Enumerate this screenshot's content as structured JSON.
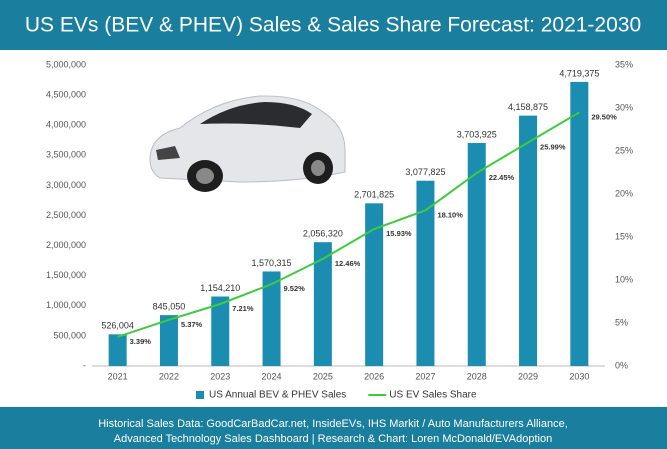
{
  "chart_data": {
    "type": "bar-line",
    "title": "US EVs (BEV & PHEV) Sales & Sales Share Forecast: 2021-2030",
    "categories": [
      "2021",
      "2022",
      "2023",
      "2024",
      "2025",
      "2026",
      "2027",
      "2028",
      "2029",
      "2030"
    ],
    "series": [
      {
        "name": "US Annual BEV & PHEV Sales",
        "type": "bar",
        "color": "#1b8db0",
        "values": [
          526004,
          845050,
          1154210,
          1570315,
          2056320,
          2701825,
          3077825,
          3703925,
          4158875,
          4719375
        ],
        "value_labels": [
          "526,004",
          "845,050",
          "1,154,210",
          "1,570,315",
          "2,056,320",
          "2,701,825",
          "3,077,825",
          "3,703,925",
          "4,158,875",
          "4,719,375"
        ]
      },
      {
        "name": "US EV Sales Share",
        "type": "line",
        "axis": "y2",
        "color": "#3ccc3c",
        "values": [
          3.39,
          5.37,
          7.21,
          9.52,
          12.46,
          15.93,
          18.1,
          22.45,
          25.99,
          29.5
        ],
        "value_labels": [
          "3.39%",
          "5.37%",
          "7.21%",
          "9.52%",
          "12.46%",
          "15.93%",
          "18.10%",
          "22.45%",
          "25.99%",
          "29.50%"
        ]
      }
    ],
    "ylim": [
      0,
      5000000
    ],
    "yticks": [
      {
        "value": 0,
        "label": "-"
      },
      {
        "value": 500000,
        "label": "500,000"
      },
      {
        "value": 1000000,
        "label": "1,000,000"
      },
      {
        "value": 1500000,
        "label": "1,500,000"
      },
      {
        "value": 2000000,
        "label": "2,000,000"
      },
      {
        "value": 2500000,
        "label": "2,500,000"
      },
      {
        "value": 3000000,
        "label": "3,000,000"
      },
      {
        "value": 3500000,
        "label": "3,500,000"
      },
      {
        "value": 4000000,
        "label": "4,000,000"
      },
      {
        "value": 4500000,
        "label": "4,500,000"
      },
      {
        "value": 5000000,
        "label": "5,000,000"
      }
    ],
    "y2lim": [
      0,
      35
    ],
    "y2ticks": [
      {
        "value": 0,
        "label": "0%"
      },
      {
        "value": 5,
        "label": "5%"
      },
      {
        "value": 10,
        "label": "10%"
      },
      {
        "value": 15,
        "label": "15%"
      },
      {
        "value": 20,
        "label": "20%"
      },
      {
        "value": 25,
        "label": "25%"
      },
      {
        "value": 30,
        "label": "30%"
      },
      {
        "value": 35,
        "label": "35%"
      }
    ],
    "grid": false,
    "legend": "bottom",
    "notes": [
      "Historical Sales Data: GoodCarBadCar.net, InsideEVs, IHS Markit / Auto Manufacturers Alliance,",
      "Advanced Technology Sales Dashboard | Research & Chart: Loren McDonald/EVAdoption"
    ]
  }
}
